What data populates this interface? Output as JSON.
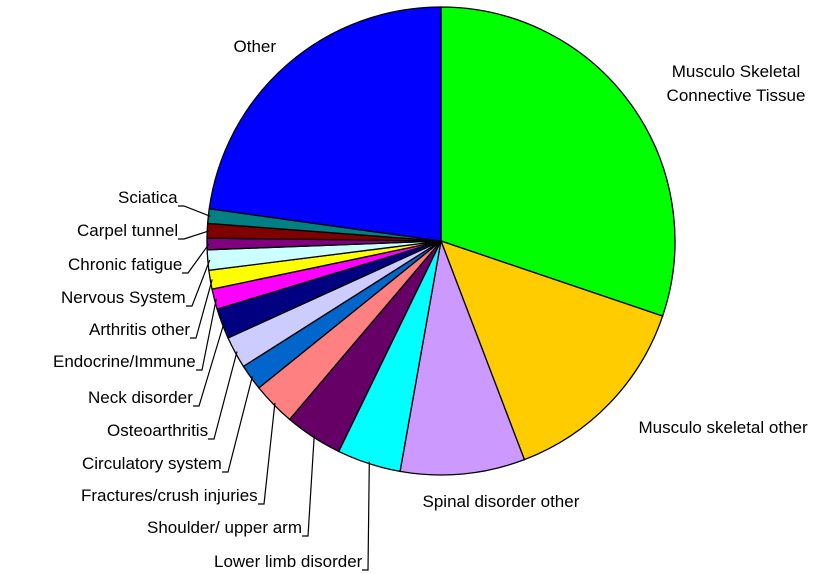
{
  "chart_data": {
    "type": "pie",
    "categories": [
      "Musculo Skeletal Connective Tissue",
      "Musculo skeletal other",
      "Spinal disorder other",
      "Lower limb disorder",
      "Shoulder/ upper arm",
      "Fractures/crush injuries",
      "Circulatory system",
      "Osteoarthritis",
      "Neck disorder",
      "Endocrine/Immune",
      "Arthritis other",
      "Nervous System",
      "Chronic fatigue",
      "Carpel tunnel",
      "Sciatica",
      "Other"
    ],
    "values": [
      30.2,
      14,
      8.6,
      4.4,
      4,
      3,
      1.8,
      2.2,
      2.1,
      1.4,
      1.3,
      1.4,
      0.8,
      1,
      1,
      22.8
    ],
    "colors": [
      "#00ff00",
      "#ffcc00",
      "#cc99ff",
      "#00ffff",
      "#660066",
      "#ff8080",
      "#0066cc",
      "#ccccff",
      "#000080",
      "#ff00ff",
      "#ffff00",
      "#ccffff",
      "#800080",
      "#800000",
      "#008080",
      "#0000ff"
    ]
  }
}
